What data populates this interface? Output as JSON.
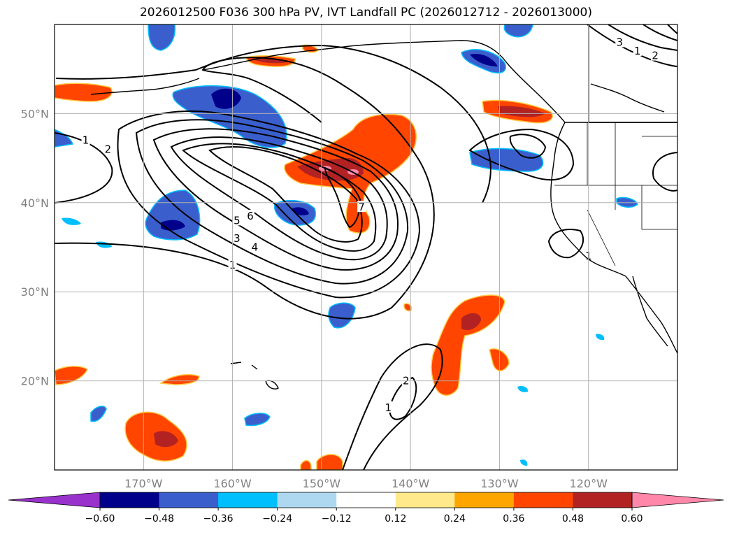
{
  "title": "2026012500 F036 300 hPa PV, IVT Landfall PC (2026012712 - 2026013000)",
  "chart_data": {
    "type": "heatmap",
    "title": "2026012500 F036 300 hPa PV, IVT Landfall PC (2026012712 - 2026013000)",
    "map_extent": {
      "lon": [
        -180,
        -110
      ],
      "lat": [
        10,
        60
      ]
    },
    "grid": true,
    "x_ticks": [
      "170°W",
      "160°W",
      "150°W",
      "140°W",
      "130°W",
      "120°W"
    ],
    "x_tick_values": [
      -170,
      -160,
      -150,
      -140,
      -130,
      -120
    ],
    "y_ticks": [
      "50°N",
      "40°N",
      "30°N",
      "20°N"
    ],
    "y_tick_values": [
      50,
      40,
      30,
      20
    ],
    "colorbar": {
      "ticks": [
        "−0.60",
        "−0.48",
        "−0.36",
        "−0.24",
        "−0.12",
        "0.12",
        "0.24",
        "0.36",
        "0.48",
        "0.60"
      ],
      "levels": [
        -0.6,
        -0.48,
        -0.36,
        -0.24,
        -0.12,
        0.12,
        0.24,
        0.36,
        0.48,
        0.6
      ],
      "colors": [
        "#9932cc",
        "#00008b",
        "#3a5fcd",
        "#00bfff",
        "#add8f0",
        "#ffffff",
        "#ffe98a",
        "#ffa500",
        "#ff4500",
        "#b22222",
        "#ff88aa"
      ],
      "extend": "both"
    },
    "contour_labels": [
      {
        "text": "1",
        "lon": -160,
        "lat": 33
      },
      {
        "text": "3",
        "lon": -159.5,
        "lat": 36
      },
      {
        "text": "4",
        "lon": -157.5,
        "lat": 35
      },
      {
        "text": "5",
        "lon": -159.5,
        "lat": 38
      },
      {
        "text": "6",
        "lon": -158,
        "lat": 38.5
      },
      {
        "text": "7",
        "lon": -145.5,
        "lat": 39.5
      },
      {
        "text": "1",
        "lon": -176.5,
        "lat": 47
      },
      {
        "text": "2",
        "lon": -174,
        "lat": 46
      },
      {
        "text": "1",
        "lon": -142.5,
        "lat": 17
      },
      {
        "text": "2",
        "lon": -140.5,
        "lat": 20
      },
      {
        "text": "1",
        "lon": -120,
        "lat": 34
      },
      {
        "text": "3",
        "lon": -116.5,
        "lat": 58
      },
      {
        "text": "2",
        "lon": -112.5,
        "lat": 56.5
      },
      {
        "text": "1",
        "lon": -114.5,
        "lat": 57
      }
    ]
  },
  "colors": {
    "dark_blue": "#00008b",
    "blue": "#3a5fcd",
    "cyan": "#00bfff",
    "orange_red": "#ff4500",
    "firebrick": "#b22222",
    "pink": "#ff88aa"
  }
}
